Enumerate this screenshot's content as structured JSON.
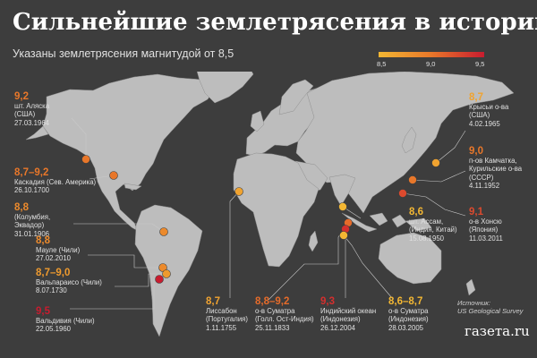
{
  "header": {
    "title": "Сильнейшие землетрясения в истории",
    "subtitle": "Указаны землетрясения магнитудой от 8,5"
  },
  "legend": {
    "min": "8,5",
    "mid": "9,0",
    "max": "9,5",
    "color_low": "#f3b733",
    "color_mid": "#e8772a",
    "color_high": "#c81c2f"
  },
  "earthquakes": [
    {
      "id": "alaska",
      "magnitude": "9,2",
      "place": "шт. Аляска",
      "region": "(США)",
      "date": "27.03.1964",
      "color": "#e8772a"
    },
    {
      "id": "cascadia",
      "magnitude": "8,7–9,2",
      "place": "Каскадия (Сев. Америка)",
      "region": "",
      "date": "26.10.1700",
      "color": "#e8772a"
    },
    {
      "id": "colombia",
      "magnitude": "8,8",
      "place": "(Колумбия,",
      "region": "Эквадор)",
      "date": "31.01.1906",
      "color": "#ec8a2c"
    },
    {
      "id": "maule",
      "magnitude": "8,8",
      "place": "Мауле (Чили)",
      "region": "",
      "date": "27.02.2010",
      "color": "#ec8a2c"
    },
    {
      "id": "valparaiso",
      "magnitude": "8,7–9,0",
      "place": "Вальпараисо (Чили)",
      "region": "",
      "date": "8.07.1730",
      "color": "#ee9a2e"
    },
    {
      "id": "valdivia",
      "magnitude": "9,5",
      "place": "Вальдивия (Чили)",
      "region": "",
      "date": "22.05.1960",
      "color": "#c81c2f"
    },
    {
      "id": "lisbon",
      "magnitude": "8,7",
      "place": "Лиссабон",
      "region": "(Португалия)",
      "date": "1.11.1755",
      "color": "#f0a330"
    },
    {
      "id": "sumatra1833",
      "magnitude": "8,8–9,2",
      "place": "о-в Суматра",
      "region": "(Голл. Ост-Индия)",
      "date": "25.11.1833",
      "color": "#e56b2a"
    },
    {
      "id": "indian_ocean",
      "magnitude": "9,3",
      "place": "Индийский океан",
      "region": "(Индонезия)",
      "date": "26.12.2004",
      "color": "#d42f2e"
    },
    {
      "id": "sumatra2005",
      "magnitude": "8,6–8,7",
      "place": "о-в Суматра",
      "region": "(Индонезия)",
      "date": "28.03.2005",
      "color": "#f3b733"
    },
    {
      "id": "assam",
      "magnitude": "8,6",
      "place": "шт. Ассам,",
      "region": "(Индия, Китай)",
      "date": "15.08.1950",
      "color": "#f3b733"
    },
    {
      "id": "rat_islands",
      "magnitude": "8,7",
      "place": "Крысьи о-ва",
      "region": "(США)",
      "date": "4.02.1965",
      "color": "#f0a330"
    },
    {
      "id": "kamchatka",
      "magnitude": "9,0",
      "place": "п-ов Камчатка,",
      "region": "Курильские о-ва",
      "extra": "(СССР)",
      "date": "4.11.1952",
      "color": "#e8772a"
    },
    {
      "id": "honshu",
      "magnitude": "9,1",
      "place": "о-в Хонсю",
      "region": "(Япония)",
      "date": "11.03.2011",
      "color": "#dc4a2e"
    }
  ],
  "source": {
    "label": "Источник:",
    "value": "US Geological Survey"
  },
  "logo": "газета.ru"
}
